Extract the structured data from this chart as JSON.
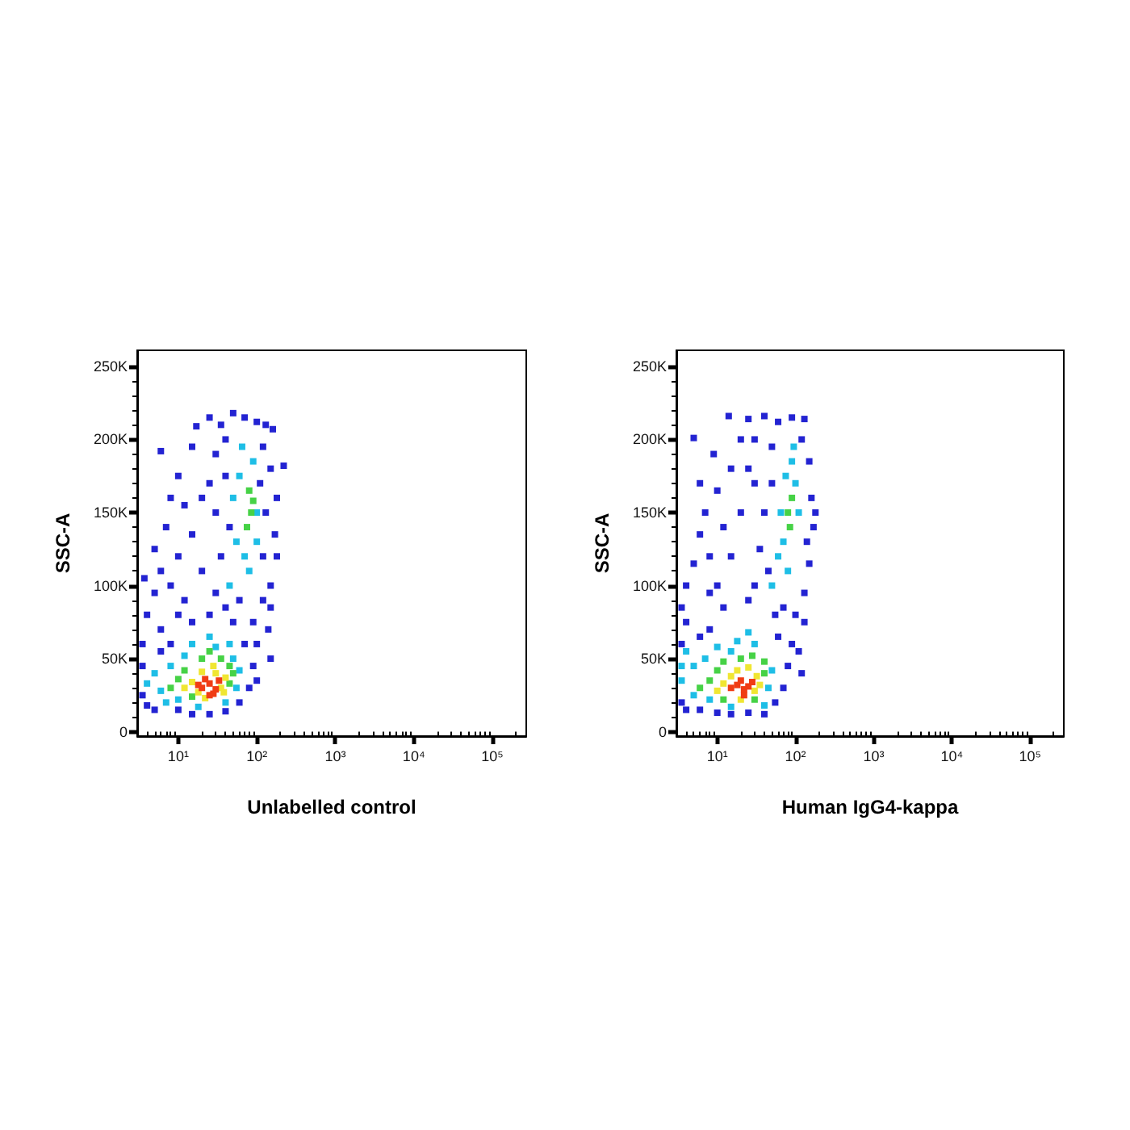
{
  "chart_data": [
    {
      "type": "scatter",
      "xlabel": "Unlabelled control",
      "ylabel": "SSC-A",
      "log": "x",
      "grid": false,
      "marker": "square",
      "xlim": [
        3,
        270000
      ],
      "ylim": [
        -3000,
        261000
      ],
      "xticks": [
        {
          "value": 4,
          "label": null
        },
        {
          "value": 5,
          "label": null
        },
        {
          "value": 6,
          "label": null
        },
        {
          "value": 7,
          "label": null
        },
        {
          "value": 8,
          "label": null
        },
        {
          "value": 9,
          "label": null
        },
        {
          "value": 10,
          "label": "10¹"
        },
        {
          "value": 20,
          "label": null
        },
        {
          "value": 30,
          "label": null
        },
        {
          "value": 40,
          "label": null
        },
        {
          "value": 50,
          "label": null
        },
        {
          "value": 60,
          "label": null
        },
        {
          "value": 70,
          "label": null
        },
        {
          "value": 80,
          "label": null
        },
        {
          "value": 90,
          "label": null
        },
        {
          "value": 100,
          "label": "10²"
        },
        {
          "value": 200,
          "label": null
        },
        {
          "value": 300,
          "label": null
        },
        {
          "value": 400,
          "label": null
        },
        {
          "value": 500,
          "label": null
        },
        {
          "value": 600,
          "label": null
        },
        {
          "value": 700,
          "label": null
        },
        {
          "value": 800,
          "label": null
        },
        {
          "value": 900,
          "label": null
        },
        {
          "value": 1000,
          "label": "10³"
        },
        {
          "value": 2000,
          "label": null
        },
        {
          "value": 3000,
          "label": null
        },
        {
          "value": 4000,
          "label": null
        },
        {
          "value": 5000,
          "label": null
        },
        {
          "value": 6000,
          "label": null
        },
        {
          "value": 7000,
          "label": null
        },
        {
          "value": 8000,
          "label": null
        },
        {
          "value": 9000,
          "label": null
        },
        {
          "value": 10000,
          "label": "10⁴"
        },
        {
          "value": 20000,
          "label": null
        },
        {
          "value": 30000,
          "label": null
        },
        {
          "value": 40000,
          "label": null
        },
        {
          "value": 50000,
          "label": null
        },
        {
          "value": 60000,
          "label": null
        },
        {
          "value": 70000,
          "label": null
        },
        {
          "value": 80000,
          "label": null
        },
        {
          "value": 90000,
          "label": null
        },
        {
          "value": 100000,
          "label": "10⁵"
        },
        {
          "value": 200000,
          "label": null
        }
      ],
      "yticks": [
        0,
        {
          "value": 10000,
          "label": null
        },
        {
          "value": 20000,
          "label": null
        },
        {
          "value": 30000,
          "label": null
        },
        {
          "value": 40000,
          "label": null
        },
        {
          "value": 50000,
          "label": "50K"
        },
        {
          "value": 60000,
          "label": null
        },
        {
          "value": 70000,
          "label": null
        },
        {
          "value": 80000,
          "label": null
        },
        {
          "value": 90000,
          "label": null
        },
        {
          "value": 100000,
          "label": "100K"
        },
        {
          "value": 110000,
          "label": null
        },
        {
          "value": 120000,
          "label": null
        },
        {
          "value": 130000,
          "label": null
        },
        {
          "value": 140000,
          "label": null
        },
        {
          "value": 150000,
          "label": "150K"
        },
        {
          "value": 160000,
          "label": null
        },
        {
          "value": 170000,
          "label": null
        },
        {
          "value": 180000,
          "label": null
        },
        {
          "value": 190000,
          "label": null
        },
        {
          "value": 200000,
          "label": "200K"
        },
        {
          "value": 210000,
          "label": null
        },
        {
          "value": 220000,
          "label": null
        },
        {
          "value": 230000,
          "label": null
        },
        {
          "value": 240000,
          "label": null
        },
        {
          "value": 250000,
          "label": "250K"
        }
      ],
      "series": [
        {
          "color": "#2323d2",
          "x": [
            3.5,
            3.5,
            3.5,
            4,
            3.7,
            4,
            5,
            6,
            6,
            8,
            10,
            15,
            25,
            40,
            60,
            80,
            90,
            100,
            70,
            150,
            100,
            150,
            5,
            6,
            5,
            7,
            8,
            6,
            10,
            12,
            10,
            8,
            15,
            15,
            17,
            12,
            20,
            20,
            10,
            15,
            25,
            35,
            50,
            70,
            100,
            130,
            160,
            30,
            40,
            120,
            150,
            180,
            170,
            180,
            150,
            120,
            30,
            35,
            25,
            40,
            45,
            110,
            130,
            60,
            40,
            90,
            30,
            50,
            120,
            140,
            25,
            220
          ],
          "values": [
            25000,
            45000,
            60000,
            80000,
            105000,
            18000,
            15000,
            55000,
            70000,
            60000,
            15000,
            12000,
            12000,
            14000,
            20000,
            30000,
            45000,
            60000,
            60000,
            50000,
            35000,
            85000,
            95000,
            110000,
            125000,
            140000,
            160000,
            192000,
            175000,
            155000,
            120000,
            100000,
            135000,
            195000,
            209000,
            90000,
            110000,
            160000,
            80000,
            75000,
            215000,
            210000,
            218000,
            215000,
            212000,
            210000,
            207000,
            190000,
            200000,
            195000,
            180000,
            160000,
            135000,
            120000,
            100000,
            90000,
            150000,
            120000,
            170000,
            175000,
            140000,
            170000,
            150000,
            90000,
            85000,
            75000,
            95000,
            75000,
            120000,
            70000,
            80000,
            182000
          ]
        },
        {
          "color": "#1ebee6",
          "x": [
            6,
            5,
            8,
            10,
            12,
            15,
            30,
            50,
            55,
            60,
            40,
            4,
            7,
            18,
            25,
            45,
            60,
            70,
            100,
            55,
            90,
            65,
            100,
            45,
            80,
            50
          ],
          "values": [
            28000,
            40000,
            45000,
            22000,
            52000,
            60000,
            58000,
            50000,
            30000,
            42000,
            20000,
            33000,
            20000,
            17000,
            65000,
            60000,
            175000,
            120000,
            150000,
            130000,
            185000,
            195000,
            130000,
            100000,
            110000,
            160000
          ]
        },
        {
          "color": "#46d246",
          "x": [
            10,
            12,
            15,
            45,
            45,
            35,
            20,
            8,
            25,
            50,
            80,
            85,
            75,
            90
          ],
          "values": [
            36000,
            42000,
            24000,
            33000,
            45000,
            50000,
            50000,
            30000,
            55000,
            40000,
            165000,
            150000,
            140000,
            158000
          ]
        },
        {
          "color": "#f0e632",
          "x": [
            15,
            18,
            35,
            40,
            30,
            20,
            12,
            22,
            28,
            38
          ],
          "values": [
            34000,
            27000,
            30000,
            37000,
            40000,
            41000,
            30000,
            23000,
            45000,
            27000
          ]
        },
        {
          "color": "#f03c14",
          "x": [
            20,
            25,
            30,
            22,
            28,
            18,
            33,
            25
          ],
          "values": [
            30000,
            33000,
            29000,
            36000,
            26000,
            32000,
            35000,
            25000
          ]
        }
      ]
    },
    {
      "type": "scatter",
      "xlabel": "Human IgG4-kappa",
      "ylabel": "SSC-A",
      "log": "x",
      "grid": false,
      "marker": "square",
      "xlim": [
        3,
        270000
      ],
      "ylim": [
        -3000,
        261000
      ],
      "xticks": [
        {
          "value": 4,
          "label": null
        },
        {
          "value": 5,
          "label": null
        },
        {
          "value": 6,
          "label": null
        },
        {
          "value": 7,
          "label": null
        },
        {
          "value": 8,
          "label": null
        },
        {
          "value": 9,
          "label": null
        },
        {
          "value": 10,
          "label": "10¹"
        },
        {
          "value": 20,
          "label": null
        },
        {
          "value": 30,
          "label": null
        },
        {
          "value": 40,
          "label": null
        },
        {
          "value": 50,
          "label": null
        },
        {
          "value": 60,
          "label": null
        },
        {
          "value": 70,
          "label": null
        },
        {
          "value": 80,
          "label": null
        },
        {
          "value": 90,
          "label": null
        },
        {
          "value": 100,
          "label": "10²"
        },
        {
          "value": 200,
          "label": null
        },
        {
          "value": 300,
          "label": null
        },
        {
          "value": 400,
          "label": null
        },
        {
          "value": 500,
          "label": null
        },
        {
          "value": 600,
          "label": null
        },
        {
          "value": 700,
          "label": null
        },
        {
          "value": 800,
          "label": null
        },
        {
          "value": 900,
          "label": null
        },
        {
          "value": 1000,
          "label": "10³"
        },
        {
          "value": 2000,
          "label": null
        },
        {
          "value": 3000,
          "label": null
        },
        {
          "value": 4000,
          "label": null
        },
        {
          "value": 5000,
          "label": null
        },
        {
          "value": 6000,
          "label": null
        },
        {
          "value": 7000,
          "label": null
        },
        {
          "value": 8000,
          "label": null
        },
        {
          "value": 9000,
          "label": null
        },
        {
          "value": 10000,
          "label": "10⁴"
        },
        {
          "value": 20000,
          "label": null
        },
        {
          "value": 30000,
          "label": null
        },
        {
          "value": 40000,
          "label": null
        },
        {
          "value": 50000,
          "label": null
        },
        {
          "value": 60000,
          "label": null
        },
        {
          "value": 70000,
          "label": null
        },
        {
          "value": 80000,
          "label": null
        },
        {
          "value": 90000,
          "label": null
        },
        {
          "value": 100000,
          "label": "10⁵"
        },
        {
          "value": 200000,
          "label": null
        }
      ],
      "yticks": [
        0,
        {
          "value": 10000,
          "label": null
        },
        {
          "value": 20000,
          "label": null
        },
        {
          "value": 30000,
          "label": null
        },
        {
          "value": 40000,
          "label": null
        },
        {
          "value": 50000,
          "label": "50K"
        },
        {
          "value": 60000,
          "label": null
        },
        {
          "value": 70000,
          "label": null
        },
        {
          "value": 80000,
          "label": null
        },
        {
          "value": 90000,
          "label": null
        },
        {
          "value": 100000,
          "label": "100K"
        },
        {
          "value": 110000,
          "label": null
        },
        {
          "value": 120000,
          "label": null
        },
        {
          "value": 130000,
          "label": null
        },
        {
          "value": 140000,
          "label": null
        },
        {
          "value": 150000,
          "label": "150K"
        },
        {
          "value": 160000,
          "label": null
        },
        {
          "value": 170000,
          "label": null
        },
        {
          "value": 180000,
          "label": null
        },
        {
          "value": 190000,
          "label": null
        },
        {
          "value": 200000,
          "label": "200K"
        },
        {
          "value": 210000,
          "label": null
        },
        {
          "value": 220000,
          "label": null
        },
        {
          "value": 230000,
          "label": null
        },
        {
          "value": 240000,
          "label": null
        },
        {
          "value": 250000,
          "label": "250K"
        }
      ],
      "series": [
        {
          "color": "#2323d2",
          "x": [
            3.5,
            3.5,
            4,
            3.5,
            4,
            6,
            6,
            8,
            10,
            15,
            25,
            40,
            55,
            70,
            80,
            90,
            60,
            110,
            120,
            130,
            4,
            5,
            6,
            7,
            6,
            9,
            5,
            14,
            10,
            12,
            8,
            10,
            15,
            15,
            20,
            12,
            20,
            8,
            25,
            40,
            60,
            90,
            130,
            30,
            50,
            120,
            150,
            160,
            170,
            150,
            130,
            30,
            40,
            35,
            25,
            50,
            140,
            45,
            70,
            100,
            30,
            55,
            25,
            180
          ],
          "values": [
            20000,
            60000,
            75000,
            85000,
            15000,
            15000,
            65000,
            70000,
            13000,
            12000,
            13000,
            12000,
            20000,
            30000,
            45000,
            60000,
            65000,
            55000,
            40000,
            75000,
            100000,
            115000,
            135000,
            150000,
            170000,
            190000,
            201000,
            216000,
            165000,
            140000,
            120000,
            100000,
            120000,
            180000,
            200000,
            85000,
            150000,
            95000,
            214000,
            216000,
            212000,
            215000,
            214000,
            200000,
            195000,
            200000,
            185000,
            160000,
            140000,
            115000,
            95000,
            170000,
            150000,
            125000,
            180000,
            170000,
            130000,
            110000,
            85000,
            80000,
            100000,
            80000,
            90000,
            150000
          ]
        },
        {
          "color": "#1ebee6",
          "x": [
            3.5,
            3.5,
            5,
            5,
            7,
            8,
            15,
            18,
            30,
            45,
            50,
            40,
            15,
            25,
            4,
            10,
            90,
            100,
            70,
            110,
            60,
            75,
            95,
            50,
            80,
            65
          ],
          "values": [
            35000,
            45000,
            25000,
            45000,
            50000,
            22000,
            55000,
            62000,
            60000,
            30000,
            42000,
            18000,
            17000,
            68000,
            55000,
            58000,
            185000,
            170000,
            130000,
            150000,
            120000,
            175000,
            195000,
            100000,
            110000,
            150000
          ]
        },
        {
          "color": "#46d246",
          "x": [
            8,
            10,
            12,
            20,
            28,
            40,
            12,
            30,
            6,
            40,
            80,
            90,
            85
          ],
          "values": [
            35000,
            42000,
            48000,
            50000,
            52000,
            40000,
            22000,
            22000,
            30000,
            48000,
            150000,
            160000,
            140000
          ]
        },
        {
          "color": "#f0e632",
          "x": [
            12,
            15,
            30,
            32,
            18,
            25,
            10,
            20,
            35
          ],
          "values": [
            33000,
            38000,
            28000,
            38000,
            42000,
            44000,
            28000,
            22000,
            32000
          ]
        },
        {
          "color": "#f03c14",
          "x": [
            18,
            22,
            20,
            25,
            15,
            28,
            22
          ],
          "values": [
            32000,
            29000,
            35000,
            31000,
            30000,
            34000,
            25000
          ]
        }
      ]
    }
  ]
}
